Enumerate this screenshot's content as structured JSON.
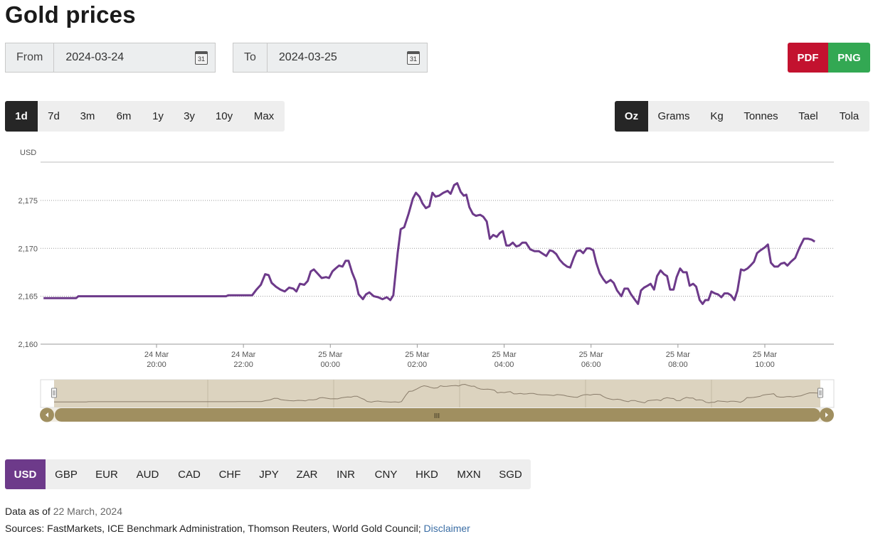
{
  "title": "Gold prices",
  "date_from": {
    "label": "From",
    "value": "2024-03-24",
    "calendar_icon": "calendar-icon",
    "calendar_day": "31"
  },
  "date_to": {
    "label": "To",
    "value": "2024-03-25",
    "calendar_icon": "calendar-icon",
    "calendar_day": "31"
  },
  "export": {
    "pdf": "PDF",
    "png": "PNG",
    "pdf_color": "#c3122f",
    "png_color": "#33a853"
  },
  "ranges": [
    "1d",
    "7d",
    "3m",
    "6m",
    "1y",
    "3y",
    "10y",
    "Max"
  ],
  "active_range": "1d",
  "units": [
    "Oz",
    "Grams",
    "Kg",
    "Tonnes",
    "Tael",
    "Tola"
  ],
  "active_unit": "Oz",
  "currencies": [
    "USD",
    "GBP",
    "EUR",
    "AUD",
    "CAD",
    "CHF",
    "JPY",
    "ZAR",
    "INR",
    "CNY",
    "HKD",
    "MXN",
    "SGD"
  ],
  "active_currency": "USD",
  "footer": {
    "data_as_of_label": "Data as of",
    "data_as_of_date": "22 March, 2024",
    "sources": "Sources: FastMarkets, ICE Benchmark Administration, Thomson Reuters, World Gold Council;",
    "disclaimer": "Disclaimer"
  },
  "navigator_handle_label": "III",
  "chart_data": {
    "type": "line",
    "ylabel": "USD",
    "ylim": [
      2160,
      2179
    ],
    "yticks": [
      2160,
      2165,
      2170,
      2175
    ],
    "ytick_labels": [
      "2,160",
      "2,165",
      "2,170",
      "2,175"
    ],
    "x_unit": "hours since 24 Mar 18:00",
    "xticks": [
      {
        "at": 2,
        "day": "24 Mar",
        "time": "20:00"
      },
      {
        "at": 4,
        "day": "24 Mar",
        "time": "22:00"
      },
      {
        "at": 6,
        "day": "25 Mar",
        "time": "00:00"
      },
      {
        "at": 8,
        "day": "25 Mar",
        "time": "02:00"
      },
      {
        "at": 10,
        "day": "25 Mar",
        "time": "04:00"
      },
      {
        "at": 12,
        "day": "25 Mar",
        "time": "06:00"
      },
      {
        "at": 14,
        "day": "25 Mar",
        "time": "08:00"
      },
      {
        "at": 16,
        "day": "25 Mar",
        "time": "10:00"
      }
    ],
    "grid": true,
    "line_color": "#6d3a8a",
    "series": [
      {
        "name": "USD",
        "points": [
          [
            -0.6,
            2164.8
          ],
          [
            0.15,
            2164.8
          ],
          [
            0.2,
            2165.0
          ],
          [
            3.6,
            2165.0
          ],
          [
            3.65,
            2165.1
          ],
          [
            4.0,
            2165.1
          ],
          [
            4.2,
            2165.1
          ],
          [
            4.3,
            2165.7
          ],
          [
            4.4,
            2166.2
          ],
          [
            4.5,
            2167.3
          ],
          [
            4.58,
            2167.2
          ],
          [
            4.65,
            2166.4
          ],
          [
            4.75,
            2166.0
          ],
          [
            4.85,
            2165.7
          ],
          [
            4.95,
            2165.5
          ],
          [
            5.05,
            2165.9
          ],
          [
            5.15,
            2165.8
          ],
          [
            5.22,
            2165.5
          ],
          [
            5.3,
            2166.3
          ],
          [
            5.4,
            2166.2
          ],
          [
            5.48,
            2166.6
          ],
          [
            5.55,
            2167.6
          ],
          [
            5.62,
            2167.8
          ],
          [
            5.7,
            2167.4
          ],
          [
            5.8,
            2166.9
          ],
          [
            5.9,
            2167.0
          ],
          [
            5.97,
            2166.9
          ],
          [
            6.05,
            2167.6
          ],
          [
            6.12,
            2167.9
          ],
          [
            6.2,
            2168.2
          ],
          [
            6.28,
            2168.1
          ],
          [
            6.35,
            2168.7
          ],
          [
            6.42,
            2168.7
          ],
          [
            6.5,
            2167.5
          ],
          [
            6.58,
            2166.6
          ],
          [
            6.65,
            2165.2
          ],
          [
            6.75,
            2164.7
          ],
          [
            6.82,
            2165.2
          ],
          [
            6.9,
            2165.4
          ],
          [
            7.0,
            2165.0
          ],
          [
            7.1,
            2164.9
          ],
          [
            7.2,
            2164.7
          ],
          [
            7.3,
            2164.9
          ],
          [
            7.38,
            2164.6
          ],
          [
            7.45,
            2165.1
          ],
          [
            7.55,
            2169.5
          ],
          [
            7.62,
            2172.0
          ],
          [
            7.7,
            2172.2
          ],
          [
            7.8,
            2173.6
          ],
          [
            7.9,
            2175.2
          ],
          [
            7.97,
            2175.8
          ],
          [
            8.05,
            2175.4
          ],
          [
            8.12,
            2174.7
          ],
          [
            8.2,
            2174.2
          ],
          [
            8.28,
            2174.4
          ],
          [
            8.35,
            2175.8
          ],
          [
            8.42,
            2175.4
          ],
          [
            8.5,
            2175.5
          ],
          [
            8.6,
            2175.8
          ],
          [
            8.7,
            2176.0
          ],
          [
            8.77,
            2175.7
          ],
          [
            8.85,
            2176.6
          ],
          [
            8.92,
            2176.8
          ],
          [
            9.0,
            2175.9
          ],
          [
            9.07,
            2175.5
          ],
          [
            9.13,
            2175.6
          ],
          [
            9.2,
            2174.3
          ],
          [
            9.28,
            2173.6
          ],
          [
            9.35,
            2173.4
          ],
          [
            9.45,
            2173.5
          ],
          [
            9.52,
            2173.3
          ],
          [
            9.6,
            2172.8
          ],
          [
            9.67,
            2171.0
          ],
          [
            9.75,
            2171.4
          ],
          [
            9.83,
            2171.2
          ],
          [
            9.9,
            2171.6
          ],
          [
            9.97,
            2171.8
          ],
          [
            10.05,
            2170.3
          ],
          [
            10.12,
            2170.3
          ],
          [
            10.2,
            2170.6
          ],
          [
            10.28,
            2170.2
          ],
          [
            10.35,
            2170.3
          ],
          [
            10.42,
            2170.6
          ],
          [
            10.5,
            2170.6
          ],
          [
            10.6,
            2169.9
          ],
          [
            10.7,
            2169.7
          ],
          [
            10.8,
            2169.7
          ],
          [
            10.9,
            2169.4
          ],
          [
            10.97,
            2169.2
          ],
          [
            11.05,
            2169.8
          ],
          [
            11.12,
            2169.7
          ],
          [
            11.2,
            2169.4
          ],
          [
            11.28,
            2168.8
          ],
          [
            11.36,
            2168.4
          ],
          [
            11.45,
            2168.1
          ],
          [
            11.52,
            2168.0
          ],
          [
            11.6,
            2169.0
          ],
          [
            11.67,
            2169.7
          ],
          [
            11.75,
            2169.8
          ],
          [
            11.82,
            2169.5
          ],
          [
            11.9,
            2170.0
          ],
          [
            11.97,
            2170.0
          ],
          [
            12.05,
            2169.8
          ],
          [
            12.12,
            2168.5
          ],
          [
            12.2,
            2167.4
          ],
          [
            12.28,
            2166.8
          ],
          [
            12.35,
            2166.4
          ],
          [
            12.45,
            2166.7
          ],
          [
            12.52,
            2166.4
          ],
          [
            12.6,
            2165.6
          ],
          [
            12.7,
            2165.0
          ],
          [
            12.77,
            2165.8
          ],
          [
            12.85,
            2165.8
          ],
          [
            12.92,
            2165.2
          ],
          [
            13.0,
            2164.7
          ],
          [
            13.08,
            2164.2
          ],
          [
            13.15,
            2165.6
          ],
          [
            13.22,
            2165.9
          ],
          [
            13.3,
            2166.1
          ],
          [
            13.37,
            2166.3
          ],
          [
            13.45,
            2165.7
          ],
          [
            13.52,
            2167.1
          ],
          [
            13.6,
            2167.7
          ],
          [
            13.68,
            2167.3
          ],
          [
            13.75,
            2167.1
          ],
          [
            13.82,
            2165.7
          ],
          [
            13.9,
            2165.7
          ],
          [
            13.97,
            2167.0
          ],
          [
            14.05,
            2167.9
          ],
          [
            14.12,
            2167.5
          ],
          [
            14.2,
            2167.5
          ],
          [
            14.27,
            2166.1
          ],
          [
            14.35,
            2166.3
          ],
          [
            14.42,
            2166.0
          ],
          [
            14.5,
            2164.6
          ],
          [
            14.57,
            2164.2
          ],
          [
            14.63,
            2164.6
          ],
          [
            14.7,
            2164.6
          ],
          [
            14.77,
            2165.5
          ],
          [
            14.85,
            2165.3
          ],
          [
            14.92,
            2165.2
          ],
          [
            15.0,
            2164.9
          ],
          [
            15.07,
            2165.3
          ],
          [
            15.15,
            2165.3
          ],
          [
            15.22,
            2165.1
          ],
          [
            15.3,
            2164.6
          ],
          [
            15.37,
            2165.6
          ],
          [
            15.45,
            2167.8
          ],
          [
            15.52,
            2167.7
          ],
          [
            15.6,
            2167.9
          ],
          [
            15.67,
            2168.2
          ],
          [
            15.75,
            2168.6
          ],
          [
            15.82,
            2169.5
          ],
          [
            15.9,
            2169.8
          ],
          [
            16.0,
            2170.1
          ],
          [
            16.07,
            2170.4
          ],
          [
            16.14,
            2168.5
          ],
          [
            16.22,
            2168.1
          ],
          [
            16.3,
            2168.1
          ],
          [
            16.37,
            2168.4
          ],
          [
            16.45,
            2168.5
          ],
          [
            16.52,
            2168.2
          ],
          [
            16.6,
            2168.6
          ],
          [
            16.7,
            2169.0
          ],
          [
            16.8,
            2170.1
          ],
          [
            16.9,
            2171.0
          ],
          [
            17.0,
            2171.0
          ],
          [
            17.08,
            2170.9
          ],
          [
            17.15,
            2170.7
          ]
        ]
      }
    ]
  }
}
